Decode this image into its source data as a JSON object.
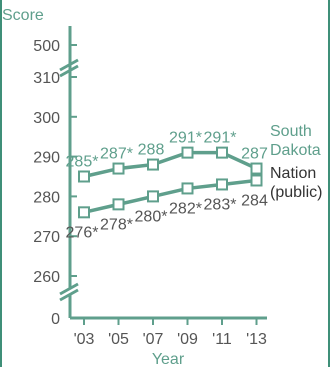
{
  "chart_data": {
    "type": "line",
    "ylabel": "Score",
    "xlabel": "Year",
    "x": [
      "'03",
      "'05",
      "'07",
      "'09",
      "'11",
      "'13"
    ],
    "y_ticks_upper": [
      "500",
      "310",
      "300",
      "290",
      "280",
      "270",
      "260"
    ],
    "y_ticks_lower": [
      "0"
    ],
    "ylim": [
      260,
      310
    ],
    "series": [
      {
        "name": "South Dakota",
        "legend_lines": [
          "South",
          "Dakota"
        ],
        "values": [
          285,
          287,
          288,
          291,
          291,
          287
        ],
        "labels": [
          "285*",
          "287*",
          "288",
          "291*",
          "291*",
          "287"
        ],
        "color": "#5f9f8c"
      },
      {
        "name": "Nation (public)",
        "legend_lines": [
          "Nation",
          "(public)"
        ],
        "values": [
          276,
          278,
          280,
          282,
          283,
          284
        ],
        "labels": [
          "276*",
          "278*",
          "280*",
          "282*",
          "283*",
          "284"
        ],
        "color": "#5f9f8c"
      }
    ]
  }
}
